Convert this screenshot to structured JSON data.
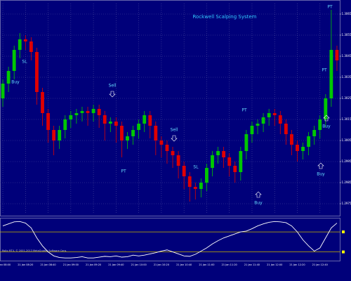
{
  "chart_data": {
    "type": "candlestick",
    "title": "Rockwell Scalping System",
    "categories": [
      "21 Jan 08:00",
      null,
      null,
      null,
      "21 Jan 08:20",
      null,
      null,
      null,
      "21 Jan 08:40",
      null,
      null,
      null,
      "21 Jan 09:00",
      null,
      null,
      null,
      "21 Jan 09:20",
      null,
      null,
      null,
      "21 Jan 09:40",
      null,
      null,
      null,
      "21 Jan 10:00",
      null,
      null,
      null,
      "21 Jan 10:20",
      null,
      null,
      null,
      "21 Jan 10:40",
      null,
      null,
      null,
      "21 Jan 11:00",
      null,
      null,
      null,
      "21 Jan 11:20",
      null,
      null,
      null,
      "21 Jan 11:40",
      null,
      null,
      null,
      "21 Jan 12:00",
      null,
      null,
      null,
      "21 Jan 12:20",
      null,
      null,
      null,
      "21 Jan 12:40",
      null,
      null,
      null
    ],
    "open": [
      1.3025,
      1.3032,
      1.3038,
      1.3048,
      1.3053,
      1.3052,
      1.3047,
      1.3028,
      1.3018,
      1.301,
      1.3005,
      1.301,
      1.3015,
      1.3017,
      1.3018,
      1.3019,
      1.3018,
      1.302,
      1.3017,
      1.3013,
      1.3014,
      1.3012,
      1.3005,
      1.3007,
      1.301,
      1.3013,
      1.3017,
      1.3012,
      1.3005,
      1.3003,
      1.3,
      1.2998,
      1.2993,
      1.2988,
      1.2983,
      1.2982,
      1.2985,
      1.2992,
      1.2998,
      1.3,
      1.2997,
      1.2993,
      1.299,
      1.3,
      1.3008,
      1.3012,
      1.3013,
      1.3016,
      1.3018,
      1.3017,
      1.3013,
      1.3008,
      1.3003,
      1.3,
      1.3002,
      1.3007,
      1.301,
      1.3015,
      1.3025,
      1.3048
    ],
    "high": [
      1.3034,
      1.304,
      1.305,
      1.3056,
      1.3055,
      1.3054,
      1.3049,
      1.303,
      1.302,
      1.3012,
      1.3012,
      1.3017,
      1.3019,
      1.302,
      1.3021,
      1.3021,
      1.3022,
      1.3022,
      1.3019,
      1.3016,
      1.3016,
      1.3014,
      1.3009,
      1.3012,
      1.3015,
      1.3019,
      1.3019,
      1.3014,
      1.3007,
      1.3005,
      1.3002,
      1.3,
      1.2995,
      1.299,
      1.2985,
      1.2987,
      1.2994,
      1.3,
      1.3002,
      1.3002,
      1.2999,
      1.2995,
      1.3002,
      1.301,
      1.3014,
      1.3015,
      1.3018,
      1.302,
      1.302,
      1.3019,
      1.3015,
      1.301,
      1.3005,
      1.3004,
      1.3009,
      1.3012,
      1.3017,
      1.3027,
      1.3067,
      1.305
    ],
    "low": [
      1.3021,
      1.3028,
      1.3034,
      1.3044,
      1.3048,
      1.3043,
      1.3022,
      1.3012,
      1.3004,
      1.2998,
      1.3001,
      1.3006,
      1.3011,
      1.3013,
      1.3014,
      1.3012,
      1.3014,
      1.3011,
      1.3005,
      1.3009,
      1.3004,
      1.2997,
      1.3001,
      1.3003,
      1.3006,
      1.3009,
      1.3006,
      1.2998,
      1.2997,
      1.2994,
      1.2992,
      1.2987,
      1.2982,
      1.2976,
      1.2977,
      1.2978,
      1.2981,
      1.2988,
      1.2994,
      1.2992,
      1.2988,
      1.2985,
      1.2986,
      1.2996,
      1.3004,
      1.3008,
      1.3009,
      1.3012,
      1.3012,
      1.3008,
      1.3003,
      1.2998,
      1.2995,
      1.2996,
      1.2998,
      1.3003,
      1.3006,
      1.3011,
      1.3021,
      1.3038
    ],
    "close": [
      1.3032,
      1.3038,
      1.3048,
      1.3053,
      1.3052,
      1.3047,
      1.3028,
      1.3018,
      1.301,
      1.3005,
      1.301,
      1.3015,
      1.3017,
      1.3018,
      1.3019,
      1.3018,
      1.302,
      1.3017,
      1.3013,
      1.3014,
      1.3012,
      1.3005,
      1.3007,
      1.301,
      1.3013,
      1.3017,
      1.3012,
      1.3005,
      1.3003,
      1.3,
      1.2998,
      1.2993,
      1.2988,
      1.2983,
      1.2982,
      1.2985,
      1.2992,
      1.2998,
      1.3,
      1.2997,
      1.2993,
      1.299,
      1.3,
      1.3008,
      1.3012,
      1.3013,
      1.3016,
      1.3018,
      1.3017,
      1.3013,
      1.3008,
      1.3003,
      1.3,
      1.3002,
      1.3007,
      1.301,
      1.3015,
      1.3025,
      1.3048,
      1.3043
    ],
    "up_color": "#00c800",
    "down_color": "#e00000",
    "ylim": [
      1.297,
      1.307
    ],
    "yticks": [
      1.2975,
      1.2985,
      1.2995,
      1.3005,
      1.3015,
      1.3025,
      1.3035,
      1.3045,
      1.3055,
      1.3065
    ],
    "grid": true,
    "annotations": [
      "SL",
      "Buy",
      "Sell",
      "PT",
      "Sell",
      "SL",
      "PT",
      "Buy",
      "PT",
      "Buy",
      "Buy",
      "PT"
    ],
    "indicator": {
      "type": "line",
      "values": [
        85,
        90,
        95,
        96,
        92,
        80,
        55,
        35,
        20,
        10,
        6,
        5,
        5,
        6,
        8,
        5,
        5,
        7,
        9,
        8,
        10,
        7,
        8,
        12,
        10,
        12,
        15,
        18,
        22,
        25,
        20,
        15,
        10,
        9,
        14,
        22,
        30,
        40,
        48,
        55,
        60,
        65,
        70,
        72,
        78,
        85,
        90,
        94,
        96,
        95,
        93,
        85,
        70,
        50,
        35,
        22,
        30,
        55,
        80,
        92
      ],
      "color": "#ffffff",
      "ylim": [
        0,
        100
      ],
      "levels": [
        70,
        20
      ],
      "level_color": "#c8b400"
    },
    "footer": "Rollo MT4, © 2001-2013 MetaQuotes Software Corp."
  }
}
